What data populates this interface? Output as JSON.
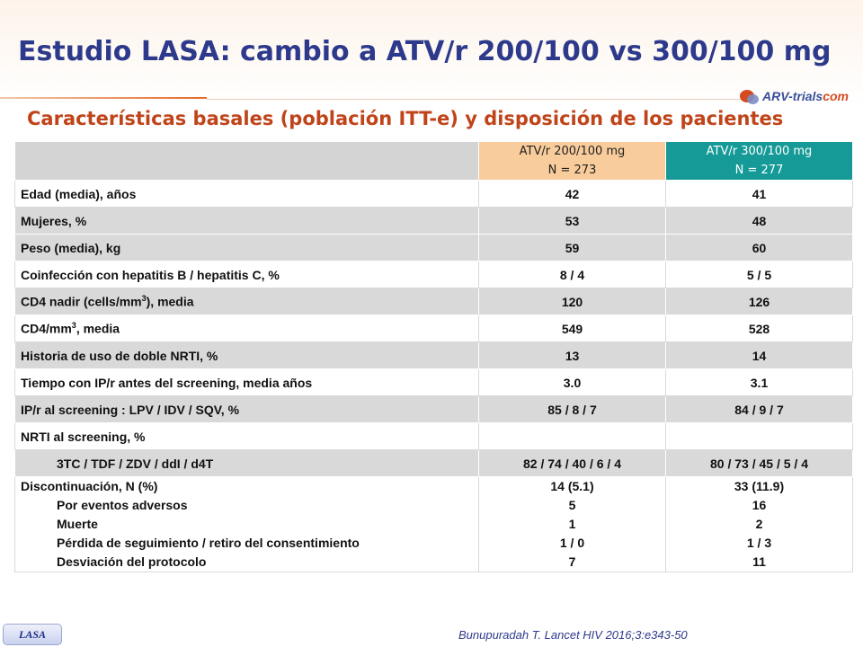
{
  "title": "Estudio LASA: cambio a ATV/r 200/100 vs 300/100 mg",
  "subtitle": "Características basales (población ITT-e) y disposición de los pacientes",
  "logo": {
    "text_main": "ARV-trials",
    "text_accent": "com",
    "color": "#d64a1f"
  },
  "table": {
    "header": {
      "col_a_line1": "ATV/r 200/100 mg",
      "col_a_line2": "N = 273",
      "col_b_line1": "ATV/r 300/100 mg",
      "col_b_line2": "N = 277",
      "col_a_color": "#f9cc9c",
      "col_b_color": "#159a98"
    },
    "rows": [
      {
        "label": "Edad (media), años",
        "a": "42",
        "b": "41"
      },
      {
        "label": "Mujeres, %",
        "a": "53",
        "b": "48"
      },
      {
        "label": "Peso (media), kg",
        "a": "59",
        "b": "60"
      },
      {
        "label": "Coinfección con hepatitis B / hepatitis C, %",
        "a": "8 / 4",
        "b": "5 / 5"
      },
      {
        "label_pre": "CD4 nadir (cells/mm",
        "label_sup": "3",
        "label_post": "), media",
        "a": "120",
        "b": "126"
      },
      {
        "label_pre": "CD4/mm",
        "label_sup": "3",
        "label_post": ", media",
        "a": "549",
        "b": "528"
      },
      {
        "label": "Historia de uso de doble NRTI, %",
        "a": "13",
        "b": "14"
      },
      {
        "label": "Tiempo con IP/r antes del screening, media años",
        "a": "3.0",
        "b": "3.1"
      },
      {
        "label": "IP/r al screening : LPV / IDV / SQV, %",
        "a": "85 / 8 / 7",
        "b": "84 / 9 / 7"
      },
      {
        "label": "NRTI al screening, %",
        "a": "",
        "b": ""
      },
      {
        "label": "3TC / TDF / ZDV / ddI / d4T",
        "a": "82 / 74 / 40 / 6 / 4",
        "b": "80 / 73 / 45 / 5 / 4"
      }
    ],
    "discontinuation": {
      "label": "Discontinuación, N (%)",
      "sub_labels": [
        "Por eventos adversos",
        "Muerte",
        "Pérdida de seguimiento / retiro del consentimiento",
        "Desviación del protocolo"
      ],
      "a": [
        "14 (5.1)",
        "5",
        "1",
        "1 / 0",
        "7"
      ],
      "b": [
        "33 (11.9)",
        "16",
        "2",
        "1 / 3",
        "11"
      ]
    }
  },
  "badge": "LASA",
  "citation": "Bunupuradah T. Lancet HIV 2016;3:e343-50"
}
